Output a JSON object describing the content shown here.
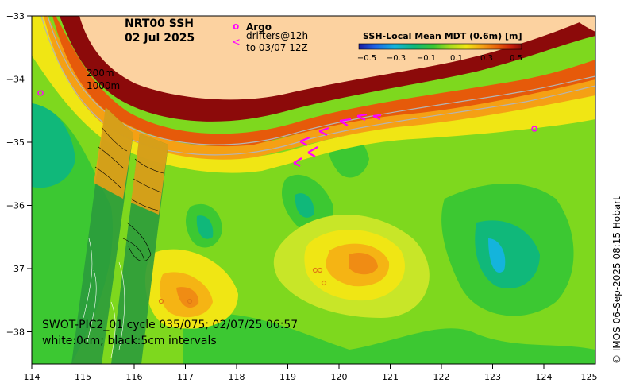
{
  "title": {
    "line1": "NRT00 SSH",
    "line2": "02 Jul 2025"
  },
  "legend": {
    "argo_symbol": "o",
    "argo_label": "Argo",
    "drifter_symbol": "<",
    "drifter_label_1": "drifters@12h",
    "drifter_label_2": "to 03/07 12Z"
  },
  "colorbar": {
    "title": "SSH-Local Mean MDT (0.6m) [m]",
    "ticks": [
      "−0.5",
      "−0.3",
      "−0.1",
      "0.1",
      "0.3",
      "0.5"
    ]
  },
  "isobaths": {
    "label1": "200m",
    "label2": "1000m"
  },
  "swot": {
    "line1": "SWOT-PIC2_01 cycle 035/075; 02/07/25 06:57",
    "line2": "white:0cm; black:5cm intervals"
  },
  "credit": "© IMOS 06-Sep-2025 08:15 Hobart",
  "axes": {
    "x_ticks": [
      "114",
      "115",
      "116",
      "117",
      "118",
      "119",
      "120",
      "121",
      "122",
      "123",
      "124",
      "125"
    ],
    "y_ticks": [
      "−33",
      "−34",
      "−35",
      "−36",
      "−37",
      "−38"
    ]
  },
  "colors": {
    "land": "#fcd2a0",
    "drifter": "#ff00ff",
    "argo": "#ff00ff"
  }
}
